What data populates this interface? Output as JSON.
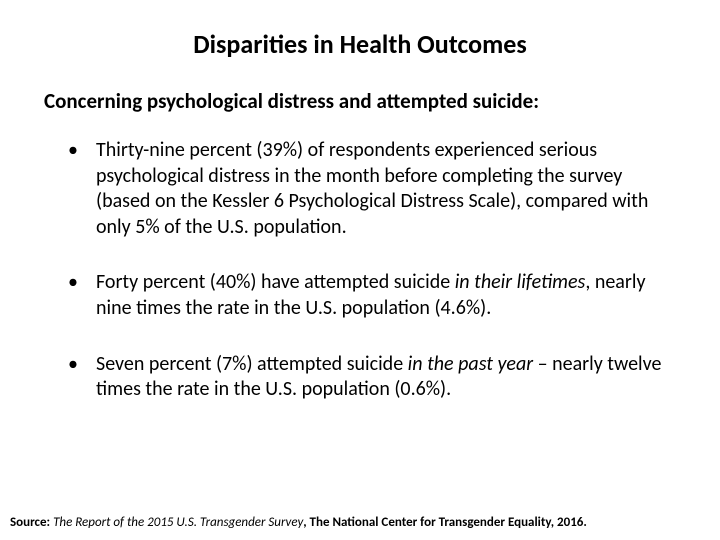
{
  "title": "Disparities in Health Outcomes",
  "subtitle": "Concerning psychological distress and attempted suicide:",
  "bullets": {
    "b1": "Thirty-nine percent (39%) of respondents experienced serious psychological distress in the month before completing the survey (based on the Kessler 6 Psychological Distress Scale), compared with only 5% of the U.S. population.",
    "b2_pre": "Forty percent (40%) have attempted suicide ",
    "b2_em": "in their lifetimes",
    "b2_post": ", nearly nine times the rate in the U.S. population (4.6%).",
    "b3_pre": "Seven percent (7%) attempted suicide ",
    "b3_em": "in the past year",
    "b3_post": " – nearly twelve times the rate in the U.S. population (0.6%)."
  },
  "source": {
    "label": "Source: ",
    "text": "The Report of the 2015 U.S. Transgender Survey",
    "tail": ", The National Center for Transgender Equality, 2016."
  },
  "colors": {
    "text": "#000000",
    "background": "#ffffff"
  },
  "fonts": {
    "title_pt": 26,
    "body_pt": 20,
    "source_pt": 13,
    "family": "Calibri"
  }
}
